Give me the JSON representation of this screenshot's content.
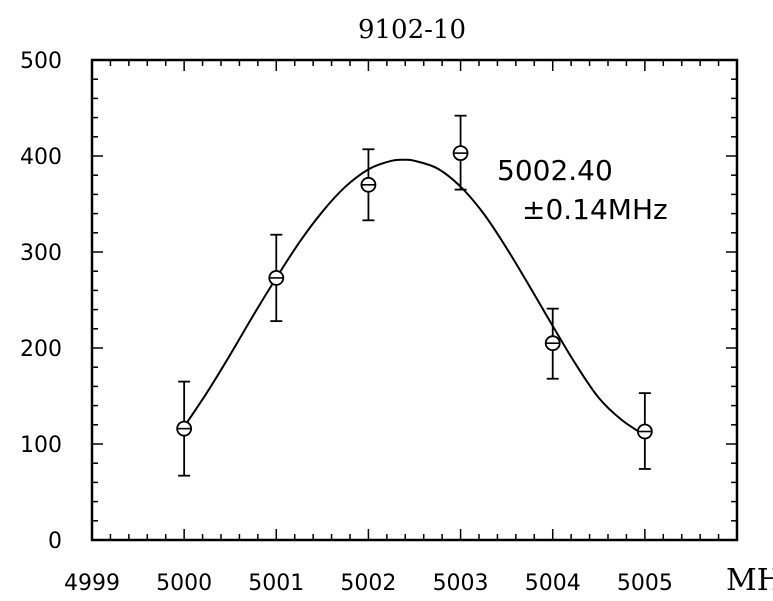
{
  "chart_data": {
    "type": "scatter",
    "title": "9102-10",
    "x_unit_label": "MHz",
    "xlim": [
      4999,
      5006
    ],
    "ylim": [
      0,
      500
    ],
    "x_ticks": [
      4999,
      5000,
      5001,
      5002,
      5003,
      5004,
      5005
    ],
    "x_tick_labels": [
      "4999",
      "5000",
      "5001",
      "5002",
      "5003",
      "5004",
      "5005"
    ],
    "y_ticks": [
      0,
      100,
      200,
      300,
      400,
      500
    ],
    "y_tick_labels": [
      "0",
      "100",
      "200",
      "300",
      "400",
      "500"
    ],
    "grid": false,
    "points": [
      {
        "x": 5000,
        "y": 116,
        "err_low": 67,
        "err_high": 165
      },
      {
        "x": 5001,
        "y": 273,
        "err_low": 228,
        "err_high": 318
      },
      {
        "x": 5002,
        "y": 370,
        "err_low": 333,
        "err_high": 407
      },
      {
        "x": 5003,
        "y": 403,
        "err_low": 365,
        "err_high": 442
      },
      {
        "x": 5004,
        "y": 205,
        "err_low": 168,
        "err_high": 241
      },
      {
        "x": 5005,
        "y": 113,
        "err_low": 74,
        "err_high": 153
      }
    ],
    "fit_curve": {
      "x": [
        5000.0,
        5000.25,
        5000.5,
        5000.75,
        5001.0,
        5001.25,
        5001.5,
        5001.75,
        5002.0,
        5002.25,
        5002.4,
        5002.5,
        5002.75,
        5003.0,
        5003.25,
        5003.5,
        5003.75,
        5004.0,
        5004.25,
        5004.5,
        5004.75,
        5005.0
      ],
      "y": [
        118,
        154,
        193,
        234,
        273,
        310,
        342,
        368,
        386,
        395,
        396,
        395,
        387,
        368,
        340,
        304,
        264,
        223,
        183,
        148,
        125,
        109
      ]
    },
    "annotation": {
      "value_line": "5002.40",
      "error_line": "±0.14MHz"
    }
  }
}
